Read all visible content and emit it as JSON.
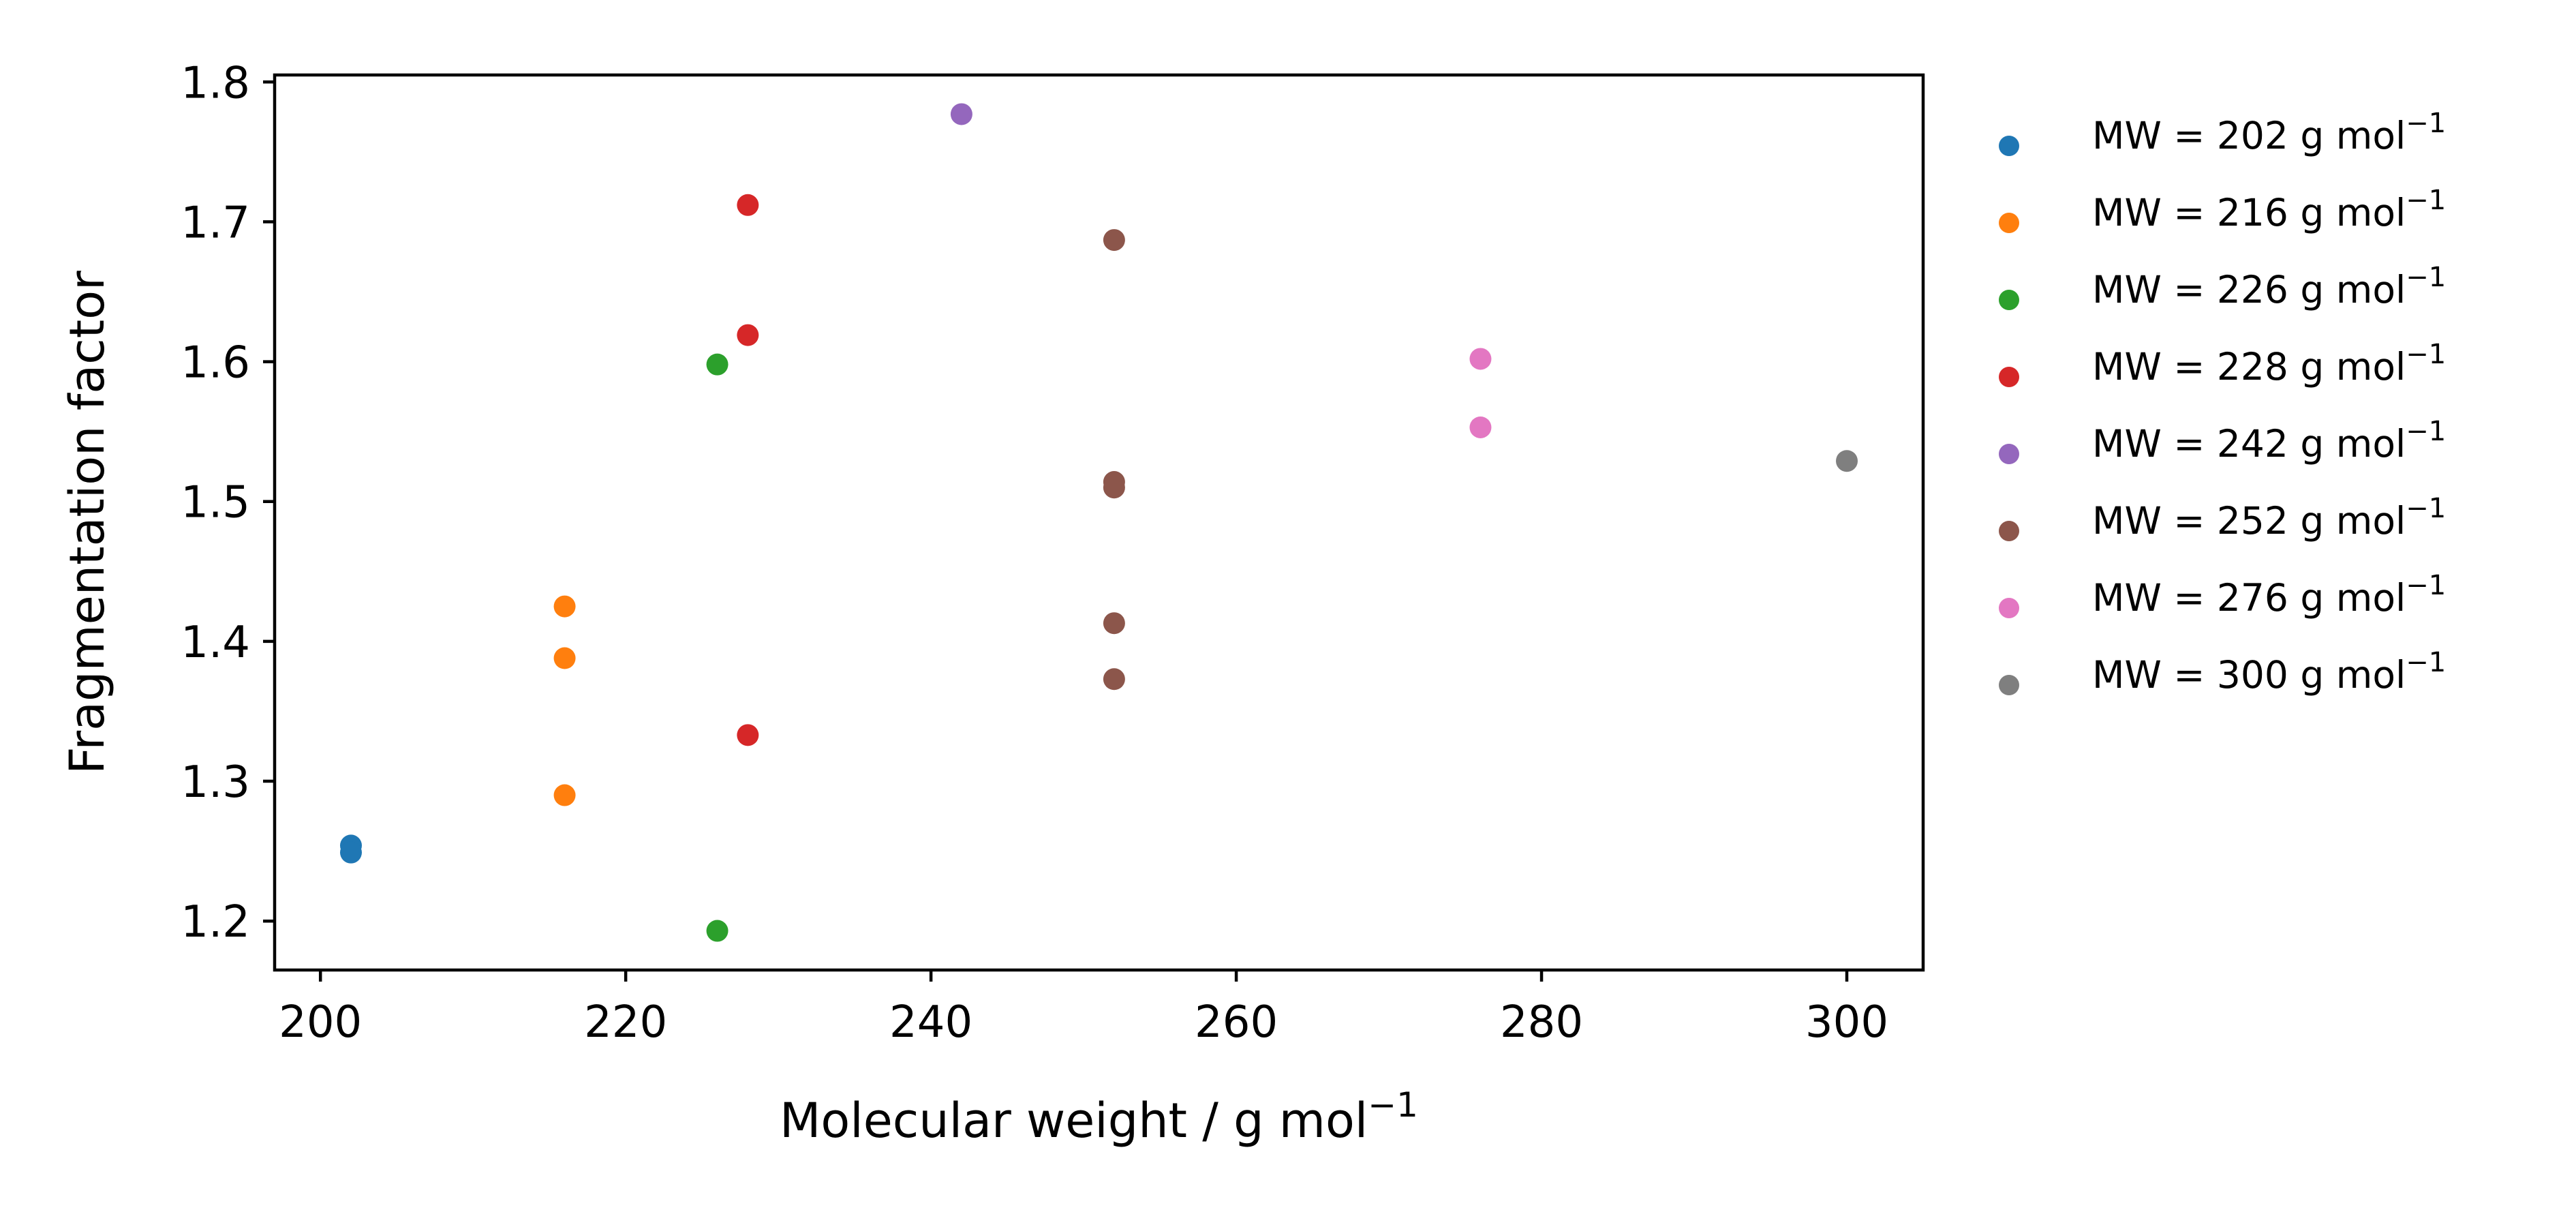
{
  "chart_data": {
    "type": "scatter",
    "title": "",
    "xlabel": "Molecular weight / g mol",
    "xlabel_sup": "−1",
    "ylabel": "Fragmentation factor",
    "xlim": [
      197,
      305
    ],
    "ylim": [
      1.165,
      1.805
    ],
    "xticks": [
      200,
      220,
      240,
      260,
      280,
      300
    ],
    "yticks": [
      1.2,
      1.3,
      1.4,
      1.5,
      1.6,
      1.7,
      1.8
    ],
    "xtick_labels": [
      "200",
      "220",
      "240",
      "260",
      "280",
      "300"
    ],
    "ytick_labels": [
      "1.2",
      "1.3",
      "1.4",
      "1.5",
      "1.6",
      "1.7",
      "1.8"
    ],
    "grid": false,
    "legend_position": "outside-right",
    "series": [
      {
        "name": "MW = 202 g mol",
        "sup": "−1",
        "color": "#1f77b4",
        "points": [
          [
            202,
            1.254
          ],
          [
            202,
            1.249
          ]
        ]
      },
      {
        "name": "MW = 216 g mol",
        "sup": "−1",
        "color": "#ff7f0e",
        "points": [
          [
            216,
            1.425
          ],
          [
            216,
            1.388
          ],
          [
            216,
            1.29
          ]
        ]
      },
      {
        "name": "MW = 226 g mol",
        "sup": "−1",
        "color": "#2ca02c",
        "points": [
          [
            226,
            1.598
          ],
          [
            226,
            1.193
          ]
        ]
      },
      {
        "name": "MW = 228 g mol",
        "sup": "−1",
        "color": "#d62728",
        "points": [
          [
            228,
            1.712
          ],
          [
            228,
            1.619
          ],
          [
            228,
            1.333
          ]
        ]
      },
      {
        "name": "MW = 242 g mol",
        "sup": "−1",
        "color": "#9467bd",
        "points": [
          [
            242,
            1.777
          ]
        ]
      },
      {
        "name": "MW = 252 g mol",
        "sup": "−1",
        "color": "#8c564b",
        "points": [
          [
            252,
            1.687
          ],
          [
            252,
            1.514
          ],
          [
            252,
            1.51
          ],
          [
            252,
            1.413
          ],
          [
            252,
            1.373
          ]
        ]
      },
      {
        "name": "MW = 276 g mol",
        "sup": "−1",
        "color": "#e377c2",
        "points": [
          [
            276,
            1.602
          ],
          [
            276,
            1.553
          ]
        ]
      },
      {
        "name": "MW = 300 g mol",
        "sup": "−1",
        "color": "#7f7f7f",
        "points": [
          [
            300,
            1.529
          ]
        ]
      }
    ]
  }
}
